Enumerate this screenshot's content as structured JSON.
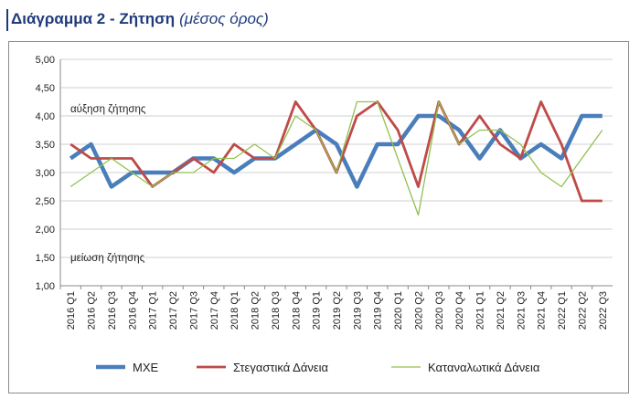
{
  "heading": {
    "title": "Διάγραμμα 2 - Ζήτηση",
    "subtitle": "(μέσος όρος)"
  },
  "chart_data": {
    "type": "line",
    "ylim": [
      1.0,
      5.0
    ],
    "y_ticks": [
      "1,00",
      "1,50",
      "2,00",
      "2,50",
      "3,00",
      "3,50",
      "4,00",
      "4,50",
      "5,00"
    ],
    "grid": true,
    "legend_position": "bottom",
    "annotations": {
      "upper": "αύξηση ζήτησης",
      "lower": "μείωση ζήτησης"
    },
    "categories": [
      "2016 Q1",
      "2016 Q2",
      "2016 Q3",
      "2016 Q4",
      "2017 Q1",
      "2017 Q2",
      "2017 Q3",
      "2017 Q4",
      "2018 Q1",
      "2018 Q2",
      "2018 Q3",
      "2018 Q4",
      "2019 Q1",
      "2019 Q2",
      "2019 Q3",
      "2019 Q4",
      "2020 Q1",
      "2020 Q2",
      "2020 Q3",
      "2020 Q4",
      "2021 Q1",
      "2021 Q2",
      "2021 Q3",
      "2021 Q4",
      "2022 Q1",
      "2022 Q2",
      "2022 Q3"
    ],
    "series": [
      {
        "name": "ΜΧΕ",
        "color": "#4a7ebb",
        "values": [
          3.25,
          3.5,
          2.75,
          3.0,
          3.0,
          3.0,
          3.25,
          3.25,
          3.0,
          3.25,
          3.25,
          3.5,
          3.75,
          3.5,
          2.75,
          3.5,
          3.5,
          4.0,
          4.0,
          3.75,
          3.25,
          3.75,
          3.25,
          3.5,
          3.25,
          4.0,
          4.0
        ]
      },
      {
        "name": "Στεγαστικά Δάνεια",
        "color": "#be4b48",
        "values": [
          3.5,
          3.25,
          3.25,
          3.25,
          2.75,
          3.0,
          3.25,
          3.0,
          3.5,
          3.25,
          3.25,
          4.25,
          3.75,
          3.0,
          4.0,
          4.25,
          3.75,
          2.75,
          4.25,
          3.5,
          4.0,
          3.5,
          3.25,
          4.25,
          3.5,
          2.5,
          2.5
        ]
      },
      {
        "name": "Καταναλωτικά Δάνεια",
        "color": "#92c050",
        "values": [
          2.75,
          3.0,
          3.25,
          3.0,
          2.75,
          3.0,
          3.0,
          3.25,
          3.25,
          3.5,
          3.25,
          4.0,
          3.75,
          3.0,
          4.25,
          4.25,
          3.25,
          2.25,
          4.25,
          3.5,
          3.75,
          3.75,
          3.5,
          3.0,
          2.75,
          3.25,
          3.75
        ]
      }
    ]
  }
}
